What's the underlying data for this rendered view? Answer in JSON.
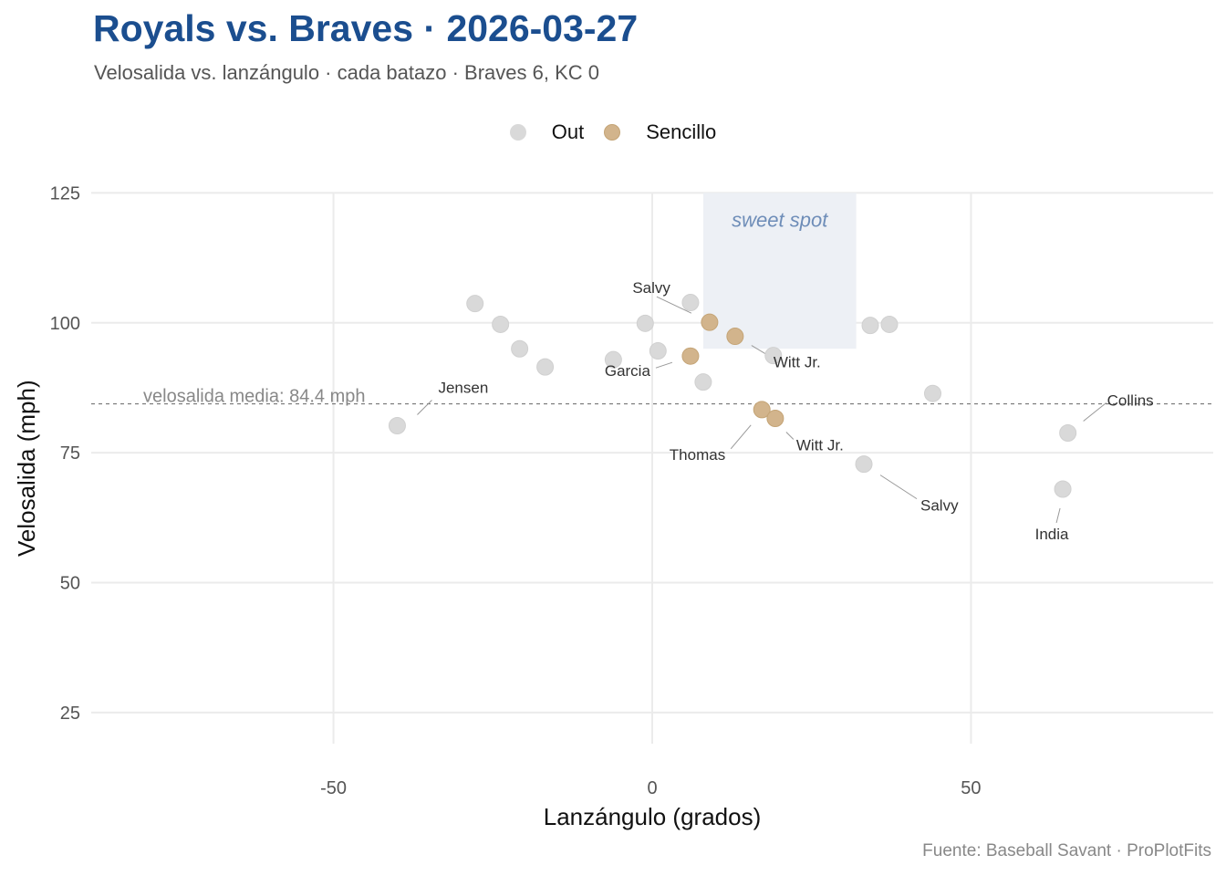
{
  "header": {
    "title": "Royals vs. Braves · 2026-03-27",
    "subtitle": "Velosalida vs. lanzángulo · cada batazo · Braves 6, KC 0"
  },
  "caption": "Fuente: Baseball Savant · ProPlotFits",
  "legend": [
    {
      "label": "Out",
      "color": "#D9D9D9"
    },
    {
      "label": "Sencillo",
      "color": "#D2B48C"
    }
  ],
  "chart_data": {
    "type": "scatter",
    "title": "Royals vs. Braves · 2026-03-27",
    "subtitle": "Velosalida vs. lanzángulo · cada batazo · Braves 6, KC 0",
    "xlabel": "Lanzángulo (grados)",
    "ylabel": "Velosalida (mph)",
    "xlim": [
      -88,
      88
    ],
    "ylim": [
      19,
      127
    ],
    "xticks": [
      -50,
      0,
      50
    ],
    "yticks": [
      25,
      50,
      75,
      100,
      125
    ],
    "grid": true,
    "legend_position": "top",
    "reference_line": {
      "y": 84.4,
      "label": "velosalida media: 84.4 mph",
      "style": "dashed"
    },
    "sweet_spot": {
      "x": [
        8,
        32
      ],
      "y": [
        95,
        125
      ],
      "label": "sweet spot"
    },
    "series": [
      {
        "name": "Out",
        "color": "#D9D9D9",
        "points": [
          {
            "x": -40.0,
            "y": 80.2,
            "label": "Jensen"
          },
          {
            "x": -27.8,
            "y": 103.7
          },
          {
            "x": -23.8,
            "y": 99.7
          },
          {
            "x": -20.8,
            "y": 95.0
          },
          {
            "x": -16.8,
            "y": 91.5
          },
          {
            "x": -6.1,
            "y": 92.9
          },
          {
            "x": -1.1,
            "y": 99.9
          },
          {
            "x": 0.9,
            "y": 94.6
          },
          {
            "x": 6.0,
            "y": 103.9
          },
          {
            "x": 8.0,
            "y": 88.6
          },
          {
            "x": 19.0,
            "y": 93.7
          },
          {
            "x": 33.2,
            "y": 72.8,
            "label": "Salvy"
          },
          {
            "x": 34.2,
            "y": 99.5
          },
          {
            "x": 37.2,
            "y": 99.7
          },
          {
            "x": 44.0,
            "y": 86.4
          },
          {
            "x": 64.4,
            "y": 68.0,
            "label": "India"
          },
          {
            "x": 65.2,
            "y": 78.8,
            "label": "Collins"
          }
        ]
      },
      {
        "name": "Sencillo",
        "color": "#D2B48C",
        "points": [
          {
            "x": 6.0,
            "y": 93.6,
            "label": "Garcia"
          },
          {
            "x": 9.0,
            "y": 100.1,
            "label": "Salvy"
          },
          {
            "x": 13.0,
            "y": 97.4,
            "label": "Witt Jr."
          },
          {
            "x": 17.2,
            "y": 83.3,
            "label": "Thomas"
          },
          {
            "x": 19.3,
            "y": 81.6,
            "label": "Witt Jr."
          }
        ]
      }
    ]
  }
}
